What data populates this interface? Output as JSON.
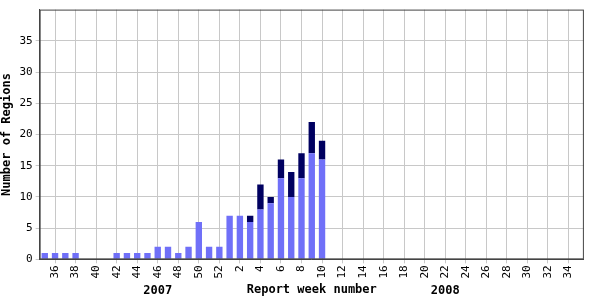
{
  "chart_data": {
    "type": "bar",
    "stacked": true,
    "y_label": "Number of Regions",
    "x_label": "Report week number",
    "categories": [
      null,
      "36",
      null,
      "38",
      null,
      "40",
      null,
      "42",
      null,
      "44",
      null,
      "46",
      null,
      "48",
      null,
      "50",
      null,
      "52",
      null,
      "2",
      null,
      "4",
      null,
      "6",
      null,
      "8",
      null,
      "10",
      null,
      "12",
      null,
      "14",
      null,
      "16",
      null,
      "18",
      null,
      "20",
      null,
      "22",
      null,
      "24",
      null,
      "26",
      null,
      "28",
      null,
      "30",
      null,
      "32",
      null,
      "34",
      null
    ],
    "series": [
      {
        "color": "#7070f8",
        "values": [
          1,
          1,
          1,
          1,
          0,
          0,
          0,
          1,
          1,
          1,
          1,
          2,
          2,
          1,
          2,
          6,
          2,
          2,
          7,
          7,
          6,
          8,
          9,
          13,
          10,
          13,
          17,
          16,
          0,
          0,
          0,
          0,
          0,
          0,
          0,
          0,
          0,
          0,
          0,
          0,
          0,
          0,
          0,
          0,
          0,
          0,
          0,
          0,
          0,
          0,
          0,
          0,
          0
        ]
      },
      {
        "color": "#000060",
        "values": [
          0,
          0,
          0,
          0,
          0,
          0,
          0,
          0,
          0,
          0,
          0,
          0,
          0,
          0,
          0,
          0,
          0,
          0,
          0,
          0,
          1,
          4,
          1,
          3,
          4,
          4,
          5,
          3,
          0,
          0,
          0,
          0,
          0,
          0,
          0,
          0,
          0,
          0,
          0,
          0,
          0,
          0,
          0,
          0,
          0,
          0,
          0,
          0,
          0,
          0,
          0,
          0,
          0
        ]
      }
    ],
    "annotations": [
      {
        "text": "2007",
        "x": 11
      },
      {
        "text": "2008",
        "x": 39
      }
    ],
    "ylim": [
      0,
      40
    ],
    "yticks": [
      0,
      5,
      10,
      15,
      20,
      25,
      30,
      35
    ],
    "grid": true
  }
}
